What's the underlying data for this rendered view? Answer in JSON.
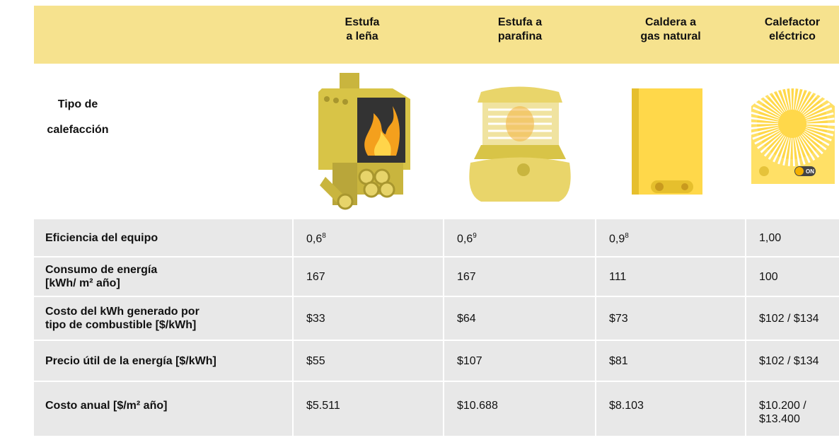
{
  "header": {
    "corner_label": [
      "Tipo de",
      "calefacción"
    ],
    "columns": [
      [
        "Estufa",
        "a leña"
      ],
      [
        "Estufa a",
        "parafina"
      ],
      [
        "Caldera a",
        "gas natural"
      ],
      [
        "Calefactor",
        "eléctrico"
      ]
    ]
  },
  "icon_labels": {
    "on_switch": "ON"
  },
  "table": {
    "rows": [
      {
        "label": [
          "Eficiencia del equipo"
        ],
        "cells": [
          {
            "text": "0,6",
            "sup": "8"
          },
          {
            "text": "0,6",
            "sup": "9"
          },
          {
            "text": "0,9",
            "sup": "8"
          },
          {
            "text": "1,00"
          }
        ]
      },
      {
        "label": [
          "Consumo de energía",
          "[kWh/ m² año]"
        ],
        "cells": [
          {
            "text": "167"
          },
          {
            "text": "167"
          },
          {
            "text": "111"
          },
          {
            "text": "100"
          }
        ]
      },
      {
        "label": [
          "Costo del kWh generado por",
          "tipo de  combustible [$/kWh]"
        ],
        "cells": [
          {
            "text": "$33"
          },
          {
            "text": "$64"
          },
          {
            "text": "$73"
          },
          {
            "text": "$102 / $134"
          }
        ]
      },
      {
        "label": [
          "Precio útil de la energía [$/kWh]"
        ],
        "cells": [
          {
            "text": "$55"
          },
          {
            "text": "$107"
          },
          {
            "text": "$81"
          },
          {
            "text": "$102 / $134"
          }
        ]
      },
      {
        "label": [
          "Costo anual [$/m² año]"
        ],
        "cells": [
          {
            "text": "$5.511"
          },
          {
            "text": "$10.688"
          },
          {
            "text": "$8.103"
          },
          {
            "text": "$10.200 / $13.400"
          }
        ]
      }
    ]
  }
}
